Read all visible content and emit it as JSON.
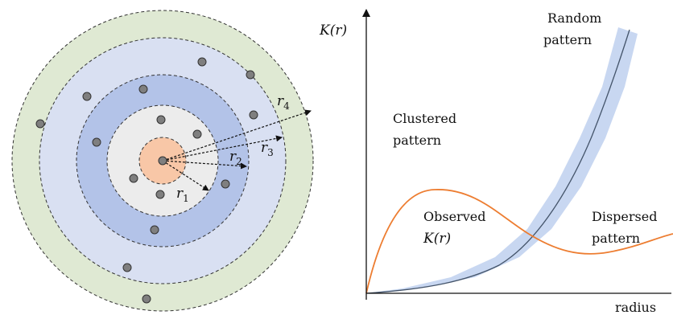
{
  "left_diagram": {
    "radii_labels": {
      "r1": {
        "base": "r",
        "sub": "1"
      },
      "r2": {
        "base": "r",
        "sub": "2"
      },
      "r3": {
        "base": "r",
        "sub": "3"
      },
      "r4": {
        "base": "r",
        "sub": "4"
      }
    },
    "colors": {
      "ring4": "#dfe9d3",
      "ring3": "#d9e0f2",
      "ring2": "#b3c3e8",
      "ring1": "#ececec",
      "core": "#f8c7a7",
      "point": "#7f7f7f"
    }
  },
  "right_chart": {
    "y_axis_label": "K(r)",
    "x_axis_label": "radius",
    "annotations": {
      "random": [
        "Random",
        "pattern"
      ],
      "clustered": [
        "Clustered",
        "pattern"
      ],
      "observed": [
        "Observed",
        "K(r)"
      ],
      "dispersed": [
        "Dispersed",
        "pattern"
      ]
    },
    "colors": {
      "random_line": "#44546a",
      "random_band": "#c5d5f0",
      "observed_line": "#ed7d31"
    }
  }
}
